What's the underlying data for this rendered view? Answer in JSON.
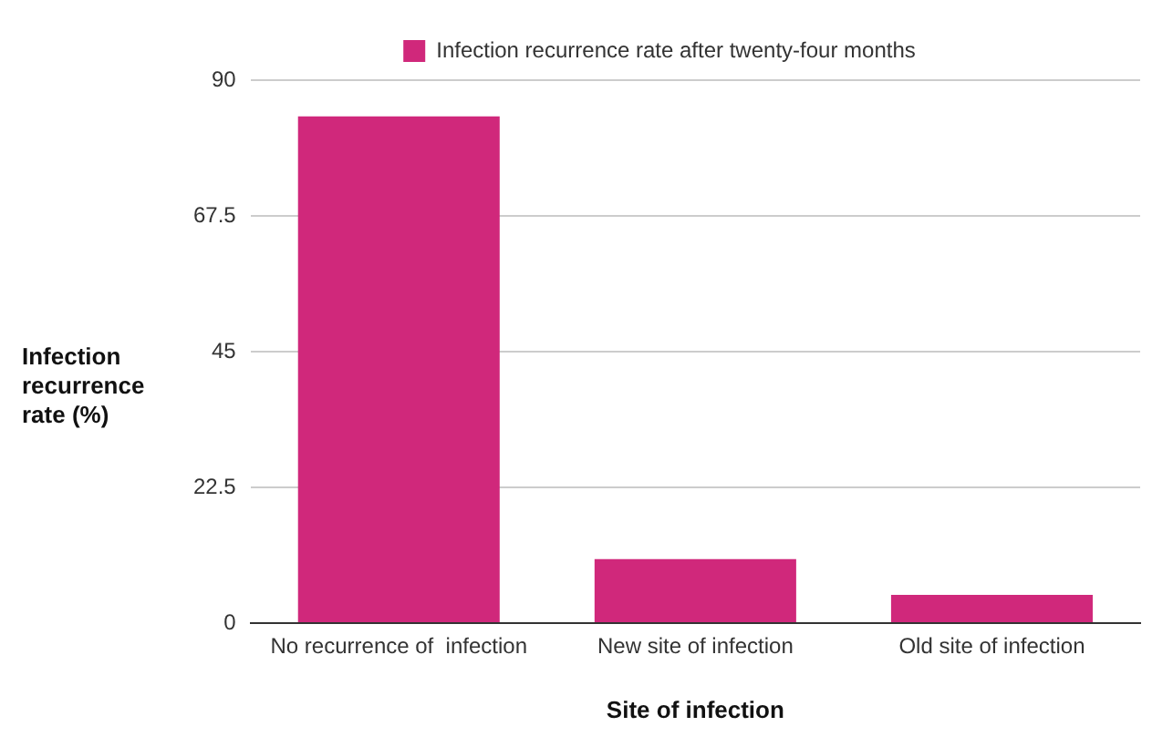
{
  "chart_data": {
    "type": "bar",
    "xlabel": "Site of infection",
    "ylabel": "Infection recurrence rate (%)",
    "categories": [
      "No recurrence of  infection",
      "New site of infection",
      "Old site of infection"
    ],
    "series": [
      {
        "name": "Infection recurrence rate after twenty-four months",
        "color": "#d0287b",
        "values": [
          84,
          10.6,
          4.7
        ]
      }
    ],
    "ylim": [
      0,
      90
    ],
    "yticks": [
      0,
      22.5,
      45,
      67.5,
      90
    ],
    "grid": "y",
    "legend": "top"
  }
}
